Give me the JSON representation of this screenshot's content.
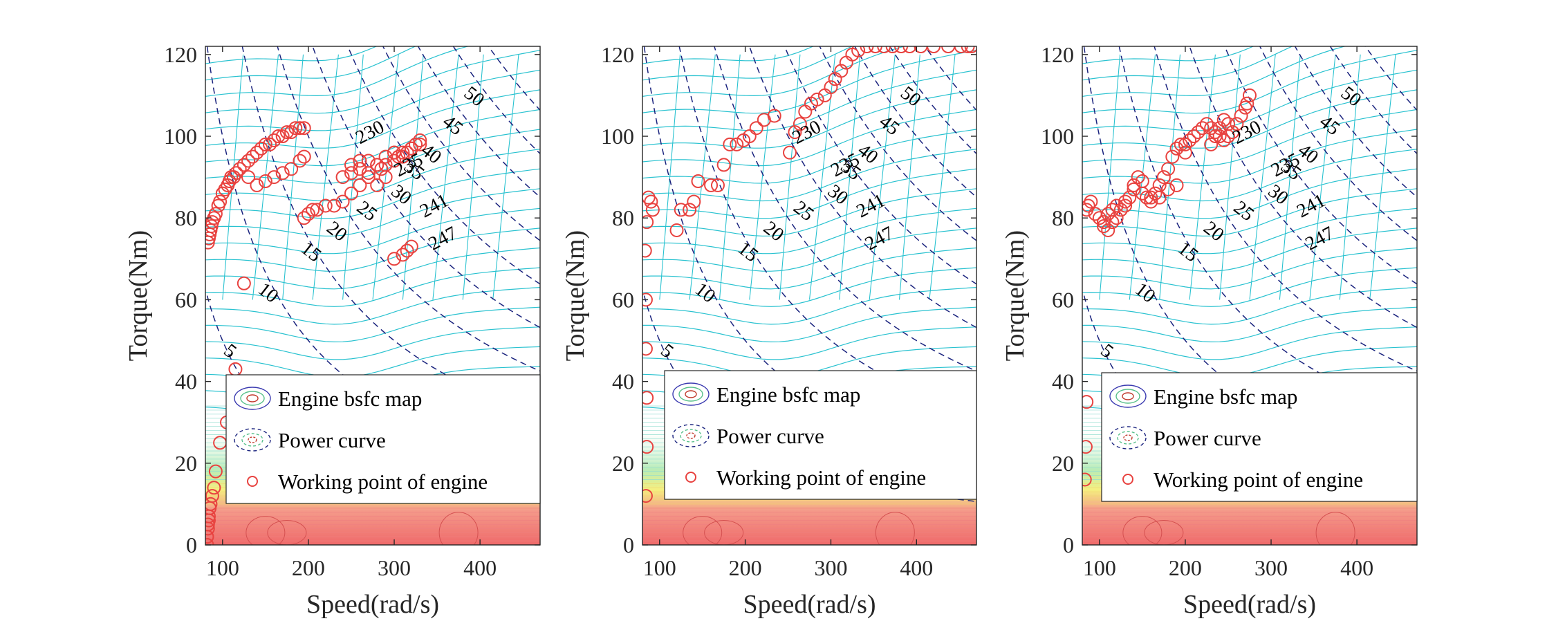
{
  "figure": {
    "background": "#ffffff"
  },
  "colors": {
    "bsfc_contour": "#29c2d0",
    "power_curve": "#1a237e",
    "working_point": "#e8423f",
    "low_region_warm": "#f06060",
    "low_region_yellow": "#f5f07a",
    "low_region_green": "#7ee3b0"
  },
  "legend_items": [
    {
      "label": "Engine bsfc map",
      "icon": "bsfc-ellipse-icon"
    },
    {
      "label": "Power curve",
      "icon": "dashed-ellipse-icon"
    },
    {
      "label": "Working point of engine",
      "icon": "circle-marker-icon"
    }
  ],
  "chart_data": [
    {
      "type": "scatter",
      "xlabel": "Speed(rad/s)",
      "ylabel": "Torque(Nm)",
      "xlim": [
        80,
        470
      ],
      "ylim": [
        0,
        122
      ],
      "xticks": [
        100,
        200,
        300,
        400
      ],
      "yticks": [
        0,
        20,
        40,
        60,
        80,
        100,
        120
      ],
      "legend_position": "lower-right",
      "power_curve_labels": [
        "5",
        "10",
        "15",
        "20",
        "25",
        "30",
        "35",
        "40",
        "45",
        "50"
      ],
      "bsfc_labels": [
        "230",
        "235",
        "241",
        "247"
      ],
      "series": [
        {
          "x": [
            83,
            84,
            85,
            86,
            87,
            88,
            90,
            92,
            95,
            97,
            100,
            103,
            106,
            108,
            110,
            113,
            116,
            120,
            125,
            130,
            135,
            140,
            145,
            150,
            155,
            160,
            165,
            170,
            175,
            180,
            185,
            190,
            195,
            140,
            150,
            160,
            170,
            180,
            190,
            195,
            130,
            195,
            200,
            205,
            210,
            220,
            230,
            240,
            250,
            260,
            270,
            280,
            290,
            300,
            310,
            320,
            325,
            330,
            250,
            260,
            270,
            280,
            285,
            290,
            300,
            305,
            310,
            315,
            240,
            250,
            260,
            270,
            280,
            290,
            300,
            310,
            320,
            330,
            300,
            310,
            315,
            320,
            125,
            115,
            105,
            97,
            92,
            90,
            88,
            86,
            85,
            84,
            84,
            83,
            83,
            82,
            82
          ],
          "y": [
            74,
            75,
            76,
            77,
            78,
            79,
            80,
            81,
            83,
            84,
            86,
            87,
            88,
            89,
            90,
            90,
            91,
            92,
            93,
            94,
            95,
            96,
            97,
            98,
            98,
            99,
            100,
            100,
            101,
            101,
            102,
            102,
            102,
            88,
            89,
            90,
            91,
            92,
            94,
            95,
            90,
            80,
            81,
            82,
            82,
            83,
            83,
            84,
            86,
            88,
            90,
            93,
            95,
            96,
            96,
            97,
            98,
            99,
            93,
            94,
            94,
            93,
            92,
            93,
            96,
            95,
            95,
            96,
            90,
            91,
            92,
            91,
            88,
            90,
            94,
            95,
            97,
            98,
            70,
            71,
            72,
            73,
            64,
            43,
            30,
            25,
            18,
            14,
            12,
            10,
            9,
            7,
            6,
            5,
            4,
            2,
            0
          ]
        }
      ]
    },
    {
      "type": "scatter",
      "xlabel": "Speed(rad/s)",
      "ylabel": "Torque(Nm)",
      "xlim": [
        80,
        470
      ],
      "ylim": [
        0,
        122
      ],
      "xticks": [
        100,
        200,
        300,
        400
      ],
      "yticks": [
        0,
        20,
        40,
        60,
        80,
        100,
        120
      ],
      "legend_position": "lower-right",
      "power_curve_labels": [
        "5",
        "10",
        "15",
        "20",
        "25",
        "30",
        "35",
        "40",
        "45",
        "50"
      ],
      "bsfc_labels": [
        "230",
        "235",
        "241",
        "247"
      ],
      "series": [
        {
          "x": [
            84,
            85,
            85,
            84,
            84,
            83,
            85,
            87,
            90,
            92,
            120,
            125,
            135,
            140,
            145,
            160,
            168,
            175,
            182,
            190,
            198,
            205,
            213,
            222,
            234,
            252,
            258,
            264,
            270,
            277,
            284,
            293,
            300,
            305,
            312,
            318,
            325,
            332,
            342,
            352,
            362,
            372,
            382,
            392,
            405,
            420,
            437,
            452,
            460,
            464
          ],
          "y": [
            12,
            24,
            36,
            48,
            60,
            72,
            79,
            85,
            84,
            82,
            77,
            82,
            82,
            84,
            89,
            88,
            88,
            93,
            98,
            98,
            99,
            100,
            102,
            104,
            105,
            96,
            101,
            103,
            106,
            108,
            109,
            110,
            112,
            114,
            116,
            118,
            120,
            121,
            122,
            122,
            122,
            122,
            122,
            122,
            122,
            122,
            122,
            122,
            122,
            122
          ]
        }
      ]
    },
    {
      "type": "scatter",
      "xlabel": "Speed(rad/s)",
      "ylabel": "Torque(Nm)",
      "xlim": [
        80,
        470
      ],
      "ylim": [
        0,
        122
      ],
      "xticks": [
        100,
        200,
        300,
        400
      ],
      "yticks": [
        0,
        20,
        40,
        60,
        80,
        100,
        120
      ],
      "legend_position": "lower-right",
      "power_curve_labels": [
        "5",
        "10",
        "15",
        "20",
        "25",
        "30",
        "35",
        "40",
        "45",
        "50"
      ],
      "bsfc_labels": [
        "230",
        "235",
        "241",
        "247"
      ],
      "series": [
        {
          "x": [
            83,
            84,
            85,
            85,
            87,
            90,
            95,
            100,
            105,
            110,
            115,
            120,
            125,
            130,
            135,
            140,
            145,
            150,
            155,
            160,
            165,
            170,
            175,
            180,
            185,
            190,
            195,
            200,
            205,
            210,
            215,
            220,
            225,
            230,
            235,
            240,
            245,
            250,
            255,
            260,
            265,
            270,
            272,
            275,
            105,
            110,
            115,
            120,
            130,
            140,
            150,
            160,
            170,
            180,
            190,
            200,
            230,
            235,
            240,
            245,
            250
          ],
          "y": [
            16,
            24,
            35,
            82,
            83,
            84,
            81,
            80,
            78,
            77,
            79,
            80,
            82,
            83,
            85,
            88,
            90,
            86,
            85,
            84,
            86,
            88,
            90,
            92,
            95,
            97,
            98,
            98,
            99,
            100,
            101,
            102,
            103,
            102,
            101,
            100,
            99,
            100,
            101,
            103,
            105,
            107,
            108,
            110,
            79,
            81,
            82,
            83,
            84,
            87,
            89,
            85,
            85,
            87,
            88,
            96,
            98,
            100,
            102,
            104,
            103
          ]
        }
      ]
    }
  ]
}
